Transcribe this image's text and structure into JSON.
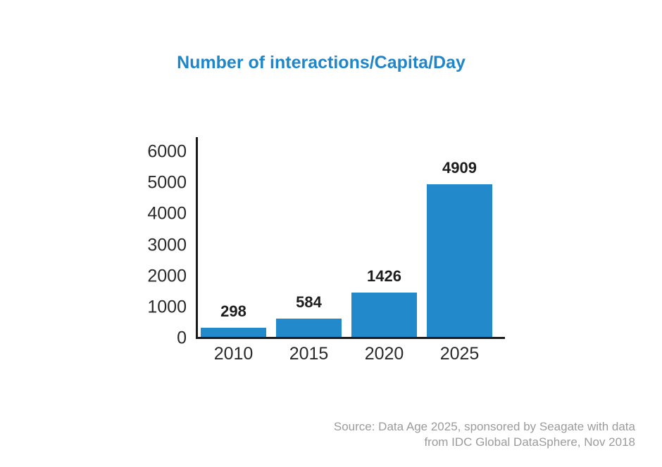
{
  "chart_data": {
    "type": "bar",
    "title": "Number of interactions/Capita/Day",
    "categories": [
      "2010",
      "2015",
      "2020",
      "2025"
    ],
    "values": [
      298,
      584,
      1426,
      4909
    ],
    "data_labels": [
      "298",
      "584",
      "1426",
      "4909"
    ],
    "xlabel": "",
    "ylabel": "",
    "ylim": [
      0,
      6000
    ],
    "yticks": [
      0,
      1000,
      2000,
      3000,
      4000,
      5000,
      6000
    ],
    "grid": false,
    "legend": "none",
    "bar_color": "#2289cb"
  },
  "source": {
    "line1": "Source: Data Age 2025, sponsored by Seagate with data",
    "line2": "from IDC Global DataSphere, Nov 2018"
  },
  "colors": {
    "accent_blue": "#2289cb",
    "title_blue": "#1f87c9",
    "axis_black": "#1a1a1a",
    "value_label_black": "#1d1d1d",
    "tick_label_dark": "#2a2a2a",
    "source_gray": "#9b9b9b"
  }
}
